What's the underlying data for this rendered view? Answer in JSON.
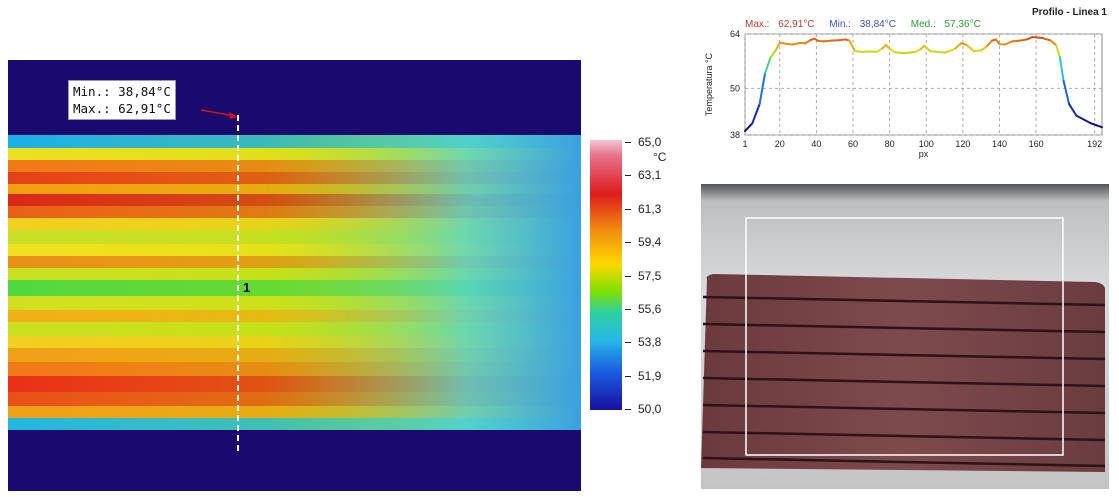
{
  "thermal": {
    "min_label": "Min.:",
    "min_value": "38,84°C",
    "max_label": "Max.:",
    "max_value": "62,91°C",
    "line_label": "1"
  },
  "scale": {
    "unit": "°C",
    "ticks": [
      "65,0",
      "63,1",
      "61,3",
      "59,4",
      "57,5",
      "55,6",
      "53,8",
      "51,9",
      "50,0"
    ]
  },
  "profile": {
    "title": "Profilo - Linea 1",
    "max_label": "Max.:",
    "max_value": "62,91°C",
    "min_label": "Min.:",
    "min_value": "38,84°C",
    "avg_label": "Med.:",
    "avg_value": "57,36°C",
    "colors": {
      "max": "#c0392b",
      "min": "#3a52b8",
      "avg": "#2e9e2e"
    }
  },
  "chart_data": {
    "type": "line",
    "xlabel": "px",
    "ylabel": "Temperatura °C",
    "xlim": [
      1,
      196
    ],
    "ylim": [
      38,
      64
    ],
    "xticks": [
      "1",
      "20",
      "40",
      "60",
      "80",
      "100",
      "120",
      "140",
      "160",
      "192"
    ],
    "yticks": [
      "38",
      "50",
      "64"
    ],
    "grid": true,
    "series": [
      {
        "x": [
          1,
          5,
          9,
          12,
          15,
          18,
          20,
          23,
          27,
          31,
          34,
          37,
          39,
          41,
          44,
          48,
          52,
          56,
          58,
          61,
          65,
          69,
          73,
          76,
          78,
          80,
          83,
          87,
          91,
          94,
          97,
          99,
          102,
          106,
          110,
          113,
          116,
          119,
          122,
          126,
          130,
          133,
          136,
          138,
          140,
          143,
          147,
          151,
          155,
          158,
          161,
          164,
          168,
          171,
          173,
          175,
          178,
          182,
          186,
          190,
          196
        ],
        "y": [
          39,
          41,
          46,
          54,
          58,
          60,
          61.8,
          61.5,
          61.3,
          61.7,
          61.6,
          62.5,
          62.8,
          62.2,
          62.1,
          62.3,
          62.4,
          62.6,
          62.3,
          59.6,
          59.4,
          59.5,
          59.4,
          60.3,
          61.2,
          60.2,
          59.3,
          59.1,
          59.2,
          59.4,
          60.1,
          61,
          59.6,
          59.4,
          59.2,
          59.6,
          60.3,
          61.6,
          61.2,
          59.6,
          59.8,
          60.8,
          62.3,
          62.6,
          61.4,
          61.3,
          62.1,
          62.3,
          62.6,
          63.2,
          63.1,
          62.9,
          62.3,
          61.1,
          58,
          52,
          46,
          43,
          42,
          41,
          40
        ]
      }
    ]
  }
}
